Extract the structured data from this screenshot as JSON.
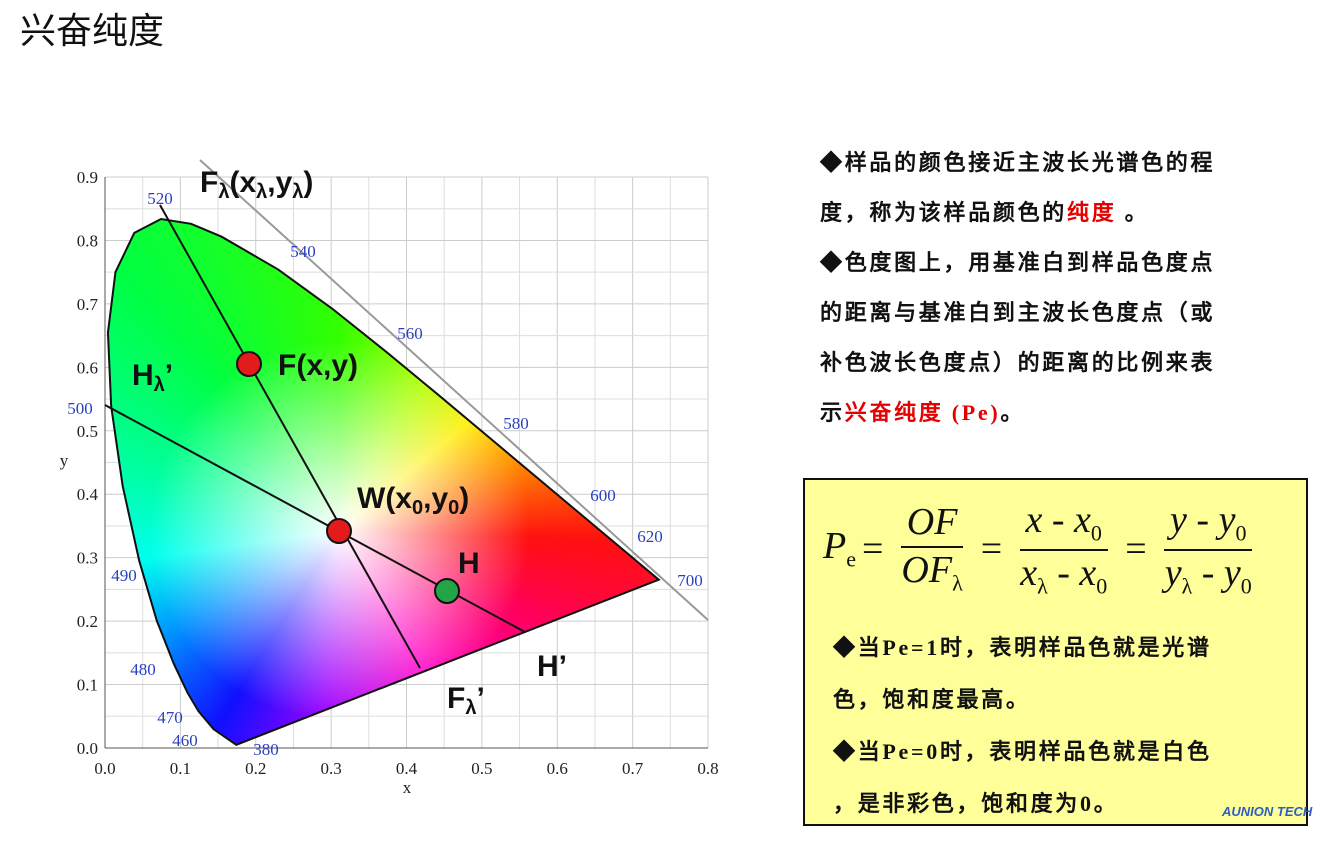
{
  "title": "兴奋纯度",
  "diagram": {
    "xlabel": "x",
    "ylabel": "y",
    "xlim": [
      0,
      0.8
    ],
    "ylim": [
      0,
      0.9
    ],
    "xticks": [
      {
        "value": 0,
        "label": "0.0"
      },
      {
        "value": 0.1,
        "label": "0.1"
      },
      {
        "value": 0.2,
        "label": "0.2"
      },
      {
        "value": 0.3,
        "label": "0.3"
      },
      {
        "value": 0.4,
        "label": "0.4"
      },
      {
        "value": 0.5,
        "label": "0.5"
      },
      {
        "value": 0.6,
        "label": "0.6"
      },
      {
        "value": 0.7,
        "label": "0.7"
      },
      {
        "value": 0.8,
        "label": "0.8"
      }
    ],
    "yticks": [
      {
        "value": 0,
        "label": "0.0"
      },
      {
        "value": 0.1,
        "label": "0.1"
      },
      {
        "value": 0.2,
        "label": "0.2"
      },
      {
        "value": 0.3,
        "label": "0.3"
      },
      {
        "value": 0.4,
        "label": "0.4"
      },
      {
        "value": 0.5,
        "label": "0.5"
      },
      {
        "value": 0.6,
        "label": "0.6"
      },
      {
        "value": 0.7,
        "label": "0.7"
      },
      {
        "value": 0.8,
        "label": "0.8"
      },
      {
        "value": 0.9,
        "label": "0.9"
      }
    ],
    "wavelengths": [
      "520",
      "540",
      "560",
      "580",
      "600",
      "620",
      "700",
      "500",
      "490",
      "480",
      "470",
      "460",
      "380"
    ],
    "labels": {
      "f_lambda": [
        {
          "text": "F"
        },
        {
          "sub": "λ"
        },
        {
          "text": "(x"
        },
        {
          "sub": "λ"
        },
        {
          "text": ",y"
        },
        {
          "sub": "λ"
        },
        {
          "text": ")"
        }
      ],
      "f": [
        {
          "text": "F(x,y)"
        }
      ],
      "h_lambda": [
        {
          "text": "H"
        },
        {
          "sub": "λ"
        },
        {
          "text": "’"
        }
      ],
      "w": [
        {
          "text": "W(x"
        },
        {
          "sub": "0"
        },
        {
          "text": ",y"
        },
        {
          "sub": "0"
        },
        {
          "text": ")"
        }
      ],
      "h": [
        {
          "text": "H"
        }
      ],
      "h_prime": [
        {
          "text": "H’"
        }
      ],
      "f_lambda_prime": [
        {
          "text": "F"
        },
        {
          "sub": "λ"
        },
        {
          "text": "’"
        }
      ]
    }
  },
  "text": {
    "lines": [
      [
        {
          "text": "◆样品的颜色接近主波长光谱色的程"
        }
      ],
      [
        {
          "text": "度，称为该样品颜色的"
        },
        {
          "text": "纯度",
          "color": "#e60000"
        },
        {
          "text": " 。"
        }
      ],
      [
        {
          "text": "◆色度图上，用基准白到样品色度点"
        }
      ],
      [
        {
          "text": "的距离与基准白到主波长色度点（或"
        }
      ],
      [
        {
          "text": "补色波长色度点）的距离的比例来表"
        }
      ],
      [
        {
          "text": "示"
        },
        {
          "text": "兴奋纯度 (Pe)",
          "color": "#e60000"
        },
        {
          "text": "。"
        }
      ]
    ]
  },
  "box": {
    "formula": {
      "lhs": [
        {
          "text": "P"
        },
        {
          "sub": "e"
        }
      ],
      "equals": "=",
      "fractions": [
        {
          "num": [
            {
              "text": "OF"
            }
          ],
          "den": [
            {
              "text": "OF"
            },
            {
              "sub": "λ"
            }
          ]
        },
        {
          "num": [
            {
              "text": "x - x"
            },
            {
              "sub": "0"
            }
          ],
          "den": [
            {
              "text": "x"
            },
            {
              "sub": "λ"
            },
            {
              "text": " - x"
            },
            {
              "sub": "0"
            }
          ]
        },
        {
          "num": [
            {
              "text": "y - y"
            },
            {
              "sub": "0"
            }
          ],
          "den": [
            {
              "text": "y"
            },
            {
              "sub": "λ"
            },
            {
              "text": " - y"
            },
            {
              "sub": "0"
            }
          ]
        }
      ]
    },
    "lines": [
      "◆当Pe=1时，表明样品色就是光谱",
      "色，饱和度最高。",
      "◆当Pe=0时，表明样品色就是白色",
      "，是非彩色，饱和度为0。"
    ]
  },
  "logo": "AUNION TECH"
}
